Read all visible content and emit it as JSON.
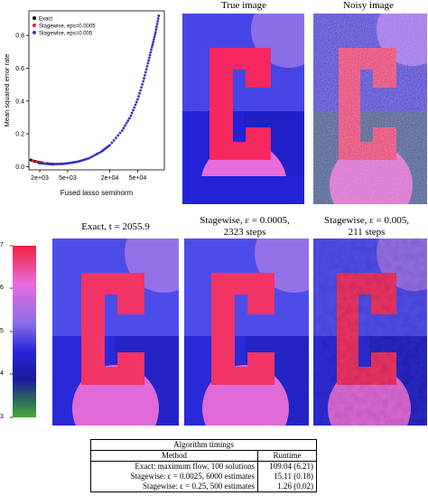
{
  "panels": {
    "true_image_title": "True image",
    "noisy_image_title": "Noisy image",
    "exact_title": "Exact, t = 2055.9",
    "stage1_title_line1": "Stagewise, ε = 0.0005,",
    "stage1_title_line2": "2323 steps",
    "stage2_title_line1": "Stagewise, ε = 0.005,",
    "stage2_title_line2": "211 steps"
  },
  "chart_data": {
    "type": "scatter",
    "xlabel": "Fused lasso seminorm",
    "ylabel": "Mean squared error rate",
    "xscale": "log",
    "x_ticks": [
      "2e+03",
      "5e+03",
      "2e+04",
      "5e+04"
    ],
    "y_ticks": [
      "0.0",
      "0.2",
      "0.4",
      "0.6",
      "0.8"
    ],
    "xlim": [
      1400,
      120000
    ],
    "ylim": [
      -0.02,
      0.95
    ],
    "legend_position": "top-left",
    "series": [
      {
        "name": "Exact",
        "color": "#000000",
        "x": [
          1500,
          1700,
          1900,
          2055.9,
          2200,
          2600,
          3000
        ],
        "y": [
          0.04,
          0.032,
          0.027,
          0.024,
          0.022,
          0.018,
          0.015
        ]
      },
      {
        "name": "Stagewise, eps=0.0005",
        "color": "#e41a1c",
        "x": [
          1600,
          1800,
          2000,
          2200,
          2500,
          2800,
          3100
        ],
        "y": [
          0.035,
          0.03,
          0.026,
          0.022,
          0.019,
          0.016,
          0.015
        ]
      },
      {
        "name": "Stagewise, eps=0.005",
        "color": "#3333bb",
        "x": [
          2000,
          3000,
          4000,
          5000,
          7000,
          10000,
          15000,
          20000,
          30000,
          40000,
          50000,
          60000,
          70000,
          80000,
          90000,
          100000
        ],
        "y": [
          0.02,
          0.015,
          0.016,
          0.02,
          0.03,
          0.05,
          0.09,
          0.13,
          0.22,
          0.31,
          0.41,
          0.52,
          0.63,
          0.73,
          0.82,
          0.92
        ]
      }
    ]
  },
  "colorbar": {
    "ticks": [
      "7",
      "6",
      "5",
      "4",
      "3"
    ]
  },
  "table": {
    "title": "Algorithm timings",
    "header": [
      "Method",
      "Runtime"
    ],
    "rows": [
      [
        "Exact: maximum flow, 100 solutions",
        "109.04 (6.21)"
      ],
      [
        "Stagewise: ϵ = 0.0025, 6000 estimates",
        "15.11 (0.18)"
      ],
      [
        "Stagewise: ϵ = 0.25, 500 estimates",
        "1.26 (0.02)"
      ]
    ]
  },
  "colors": {
    "blue": "#2323d8",
    "blue_light": "#4b4bea",
    "purple": "#9b6fe6",
    "pink": "#e96bd9",
    "red": "#f5295f",
    "green": "#2f8e3f"
  }
}
